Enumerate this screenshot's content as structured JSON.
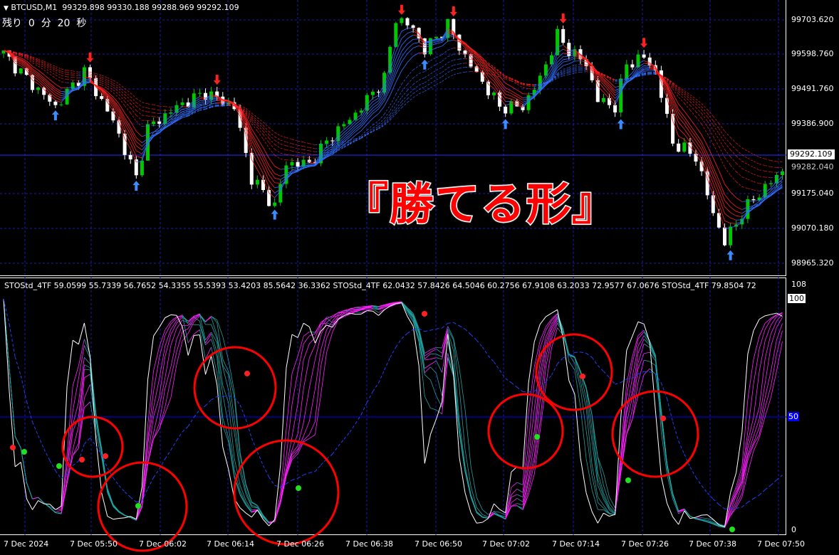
{
  "header": {
    "symbol_menu_icon": "triangle-down-icon",
    "symbol": "BTCUSD,M1",
    "ohlc": "99329.898 99330.188 99288.969 99292.109",
    "countdown": "残り  0  分  20  秒"
  },
  "price_axis": {
    "labels": [
      "99703.620",
      "99598.760",
      "99491.760",
      "99386.900",
      "99175.040",
      "99070.180",
      "98965.320"
    ],
    "current_price": "99292.109",
    "hidden_label": "99282.040"
  },
  "banner_text": "『勝てる形』",
  "indicator": {
    "legend": "STOStd_4TF 59.0599 55.7339 56.7652 54.3355 55.5393 53.4203 85.5642 36.3362  STOStd_4TF 62.0432 57.8426 64.5046 60.2756 67.9108 63.2033 72.9577 67.0676  STOStd_4TF 79.8504 72",
    "scale_max": "108",
    "level_100": "100",
    "level_50": "50",
    "level_0": "0"
  },
  "time_axis": [
    "7 Dec 2024",
    "7 Dec 05:50",
    "7 Dec 06:02",
    "7 Dec 06:14",
    "7 Dec 06:26",
    "7 Dec 06:38",
    "7 Dec 06:50",
    "7 Dec 07:02",
    "7 Dec 07:14",
    "7 Dec 07:26",
    "7 Dec 07:38",
    "7 Dec 07:50"
  ],
  "price_series_start": "05:38",
  "price_series": [
    [
      "05:38",
      99602
    ],
    [
      "05:42",
      99526
    ],
    [
      "05:47",
      99440
    ],
    [
      "05:52",
      99548
    ],
    [
      "05:57",
      99397
    ],
    [
      "06:01",
      99224
    ],
    [
      "06:03",
      99375
    ],
    [
      "06:08",
      99440
    ],
    [
      "06:13",
      99483
    ],
    [
      "06:18",
      99440
    ],
    [
      "06:21",
      99224
    ],
    [
      "06:25",
      99138
    ],
    [
      "06:27",
      99268
    ],
    [
      "06:31",
      99268
    ],
    [
      "06:35",
      99354
    ],
    [
      "06:39",
      99419
    ],
    [
      "06:44",
      99526
    ],
    [
      "06:46",
      99710
    ],
    [
      "06:49",
      99678
    ],
    [
      "06:51",
      99613
    ],
    [
      "06:55",
      99689
    ],
    [
      "06:58",
      99591
    ],
    [
      "07:04",
      99440
    ],
    [
      "07:08",
      99440
    ],
    [
      "07:11",
      99526
    ],
    [
      "07:14",
      99656
    ],
    [
      "07:16",
      99613
    ],
    [
      "07:19",
      99570
    ],
    [
      "07:21",
      99462
    ],
    [
      "07:24",
      99440
    ],
    [
      "07:26",
      99570
    ],
    [
      "07:29",
      99591
    ],
    [
      "07:31",
      99548
    ],
    [
      "07:34",
      99332
    ],
    [
      "07:38",
      99289
    ],
    [
      "07:41",
      99117
    ],
    [
      "07:43",
      99030
    ],
    [
      "07:46",
      99117
    ],
    [
      "07:48",
      99160
    ],
    [
      "07:53",
      99246
    ]
  ],
  "colors": {
    "bull_candle": "#00c800",
    "bear_candle": "#ffffff",
    "ma_down": "#ff2020",
    "ma_up": "#3070ff",
    "sto_main": "#ffffff",
    "sto_up": "#ff20ff",
    "sto_down": "#20a0a0",
    "grid": "#1a1ab0",
    "highlight_circle": "#ff0000"
  }
}
